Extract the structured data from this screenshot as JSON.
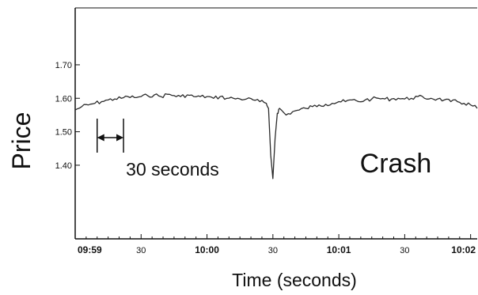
{
  "chart_data": {
    "type": "line",
    "title": "",
    "xlabel": "Time (seconds)",
    "ylabel": "Price",
    "ylim": [
      1.18,
      1.87
    ],
    "xlim": [
      "09:59:00",
      "10:02:03"
    ],
    "grid": false,
    "legend": "none",
    "x_ticks": [
      "09:59",
      "30",
      "10:00",
      "30",
      "10:01",
      "30",
      "10:02"
    ],
    "x_tick_times": [
      "09:59:00",
      "09:59:30",
      "10:00:00",
      "10:00:30",
      "10:01:00",
      "10:01:30",
      "10:02:00"
    ],
    "y_ticks": [
      "1.40",
      "1.50",
      "1.60",
      "1.70"
    ],
    "y_tick_values": [
      1.4,
      1.5,
      1.6,
      1.7
    ],
    "colors": {
      "line": "#2a2a2a",
      "axis": "#111111"
    },
    "series": [
      {
        "x": [
          "09:59:00",
          "09:59:03",
          "09:59:06",
          "09:59:09",
          "09:59:12",
          "09:59:15",
          "09:59:18",
          "09:59:21",
          "09:59:24",
          "09:59:27",
          "09:59:30",
          "09:59:33",
          "09:59:36",
          "09:59:39",
          "09:59:42",
          "09:59:45",
          "09:59:48",
          "09:59:51",
          "09:59:54",
          "09:59:57",
          "10:00:00",
          "10:00:03",
          "10:00:06",
          "10:00:09",
          "10:00:12",
          "10:00:15",
          "10:00:18",
          "10:00:21",
          "10:00:24",
          "10:00:27",
          "10:00:28",
          "10:00:29",
          "10:00:30",
          "10:00:31",
          "10:00:32",
          "10:00:33",
          "10:00:36",
          "10:00:39",
          "10:00:42",
          "10:00:45",
          "10:00:48",
          "10:00:51",
          "10:00:54",
          "10:00:57",
          "10:01:00",
          "10:01:03",
          "10:01:06",
          "10:01:09",
          "10:01:12",
          "10:01:15",
          "10:01:18",
          "10:01:21",
          "10:01:24",
          "10:01:27",
          "10:01:30",
          "10:01:33",
          "10:01:36",
          "10:01:39",
          "10:01:42",
          "10:01:45",
          "10:01:48",
          "10:01:51",
          "10:01:54",
          "10:01:57",
          "10:02:00",
          "10:02:03"
        ],
        "values": [
          1.565,
          1.575,
          1.58,
          1.585,
          1.59,
          1.595,
          1.598,
          1.6,
          1.605,
          1.602,
          1.605,
          1.608,
          1.61,
          1.605,
          1.612,
          1.608,
          1.605,
          1.61,
          1.605,
          1.605,
          1.605,
          1.6,
          1.605,
          1.6,
          1.6,
          1.598,
          1.598,
          1.595,
          1.59,
          1.585,
          1.57,
          1.43,
          1.36,
          1.48,
          1.555,
          1.57,
          1.55,
          1.56,
          1.565,
          1.57,
          1.575,
          1.58,
          1.582,
          1.585,
          1.59,
          1.59,
          1.595,
          1.59,
          1.595,
          1.598,
          1.6,
          1.598,
          1.598,
          1.6,
          1.598,
          1.6,
          1.605,
          1.6,
          1.6,
          1.598,
          1.595,
          1.59,
          1.59,
          1.585,
          1.58,
          1.57
        ]
      }
    ],
    "annotations": {
      "interval_label": "30 seconds",
      "interval": [
        "09:59:10",
        "09:59:22"
      ],
      "event_label": "Crash"
    }
  }
}
